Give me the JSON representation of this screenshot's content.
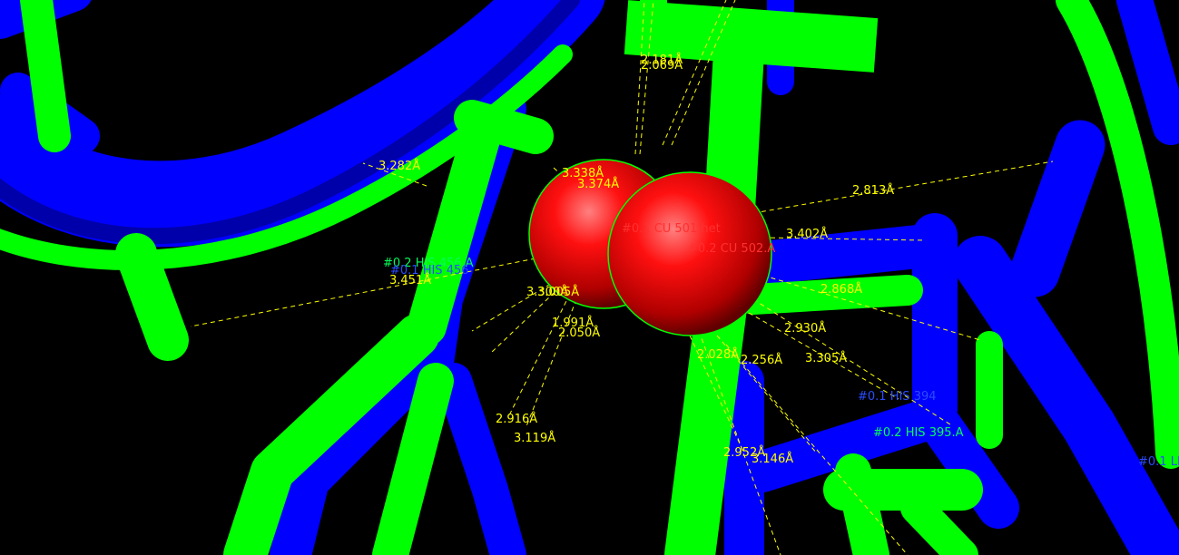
{
  "scene": {
    "background": "#000000",
    "colors": {
      "model1": "#0000ff",
      "model2": "#00ff00",
      "atom": "#ff0000",
      "distance": "#ffff00",
      "atom_label": "#ff4444",
      "residue_label_1": "#2b4cff",
      "residue_label_2": "#00ff5a"
    },
    "atoms": [
      {
        "label": "#0.1 CU 501 het"
      },
      {
        "label": "#0.2 CU 502.A"
      }
    ],
    "residue_labels": [
      {
        "label": "#0.2 HIS 456.A"
      },
      {
        "label": "#0.1 HIS 456"
      },
      {
        "label": "#0.1 HIS 394"
      },
      {
        "label": "#0.2 HIS 395.A"
      },
      {
        "label": "#0.1 LE"
      }
    ],
    "distances": [
      "2.181Å",
      "2.069Å",
      "3.338Å",
      "3.374Å",
      "3.282Å",
      "2.813Å",
      "3.402Å",
      "3.451Å",
      "3.300Å",
      "3.005Å",
      "2.868Å",
      "1.991Å",
      "2.050Å",
      "2.930Å",
      "2.028Å",
      "2.256Å",
      "3.305Å",
      "2.916Å",
      "3.119Å",
      "2.952Å",
      "3.146Å"
    ]
  }
}
